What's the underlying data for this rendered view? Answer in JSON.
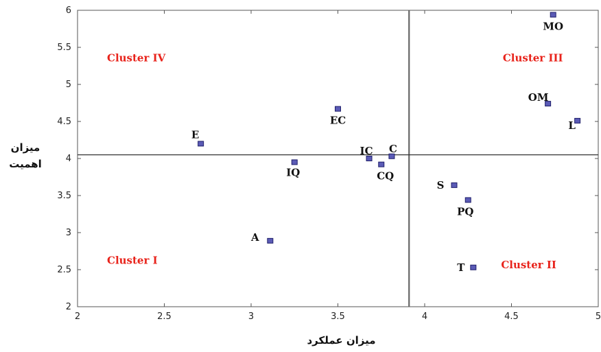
{
  "chart_data": {
    "type": "scatter",
    "xlabel": "میزان عملکرد",
    "ylabel": [
      "میزان",
      "اهمیت"
    ],
    "xlim": [
      2,
      5
    ],
    "ylim": [
      2,
      6
    ],
    "x_ticks": [
      "2",
      "2.5",
      "3",
      "3.5",
      "4",
      "4.5",
      "5"
    ],
    "y_ticks": [
      "2",
      "2.5",
      "3",
      "3.5",
      "4",
      "4.5",
      "5",
      "5.5",
      "6"
    ],
    "grid": false,
    "reference_lines": {
      "x": 3.91,
      "y": 4.05
    },
    "points": [
      {
        "label": "MO",
        "x": 4.74,
        "y": 5.94
      },
      {
        "label": "OM",
        "x": 4.71,
        "y": 4.74
      },
      {
        "label": "L",
        "x": 4.88,
        "y": 4.51
      },
      {
        "label": "EC",
        "x": 3.5,
        "y": 4.67
      },
      {
        "label": "E",
        "x": 2.71,
        "y": 4.2
      },
      {
        "label": "IQ",
        "x": 3.25,
        "y": 3.95
      },
      {
        "label": "IC",
        "x": 3.68,
        "y": 4.0
      },
      {
        "label": "C",
        "x": 3.81,
        "y": 4.03
      },
      {
        "label": "CQ",
        "x": 3.75,
        "y": 3.92
      },
      {
        "label": "S",
        "x": 4.17,
        "y": 3.64
      },
      {
        "label": "PQ",
        "x": 4.25,
        "y": 3.44
      },
      {
        "label": "A",
        "x": 3.11,
        "y": 2.89
      },
      {
        "label": "T",
        "x": 4.28,
        "y": 2.53
      }
    ],
    "cluster_labels": [
      {
        "text": "Cluster IV",
        "x": 2.17,
        "y": 5.31
      },
      {
        "text": "Cluster III",
        "x": 4.45,
        "y": 5.31
      },
      {
        "text": "Cluster I",
        "x": 2.17,
        "y": 2.58
      },
      {
        "text": "Cluster II",
        "x": 4.44,
        "y": 2.52
      }
    ],
    "colors": {
      "point_fill": "#5b5bb6",
      "point_stroke": "#1f1f6a",
      "cluster_text": "#e8231b"
    }
  }
}
